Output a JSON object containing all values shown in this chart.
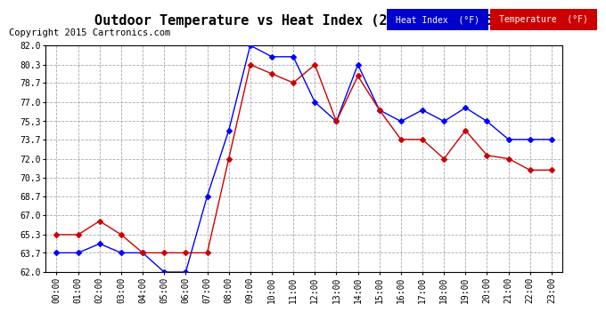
{
  "title": "Outdoor Temperature vs Heat Index (24 Hours) 20150529",
  "copyright": "Copyright 2015 Cartronics.com",
  "hours": [
    "00:00",
    "01:00",
    "02:00",
    "03:00",
    "04:00",
    "05:00",
    "06:00",
    "07:00",
    "08:00",
    "09:00",
    "10:00",
    "11:00",
    "12:00",
    "13:00",
    "14:00",
    "15:00",
    "16:00",
    "17:00",
    "18:00",
    "19:00",
    "20:00",
    "21:00",
    "22:00",
    "23:00"
  ],
  "heat_index": [
    63.7,
    63.7,
    64.5,
    63.7,
    63.7,
    62.0,
    62.0,
    68.7,
    74.5,
    82.0,
    81.0,
    81.0,
    77.0,
    75.3,
    80.3,
    76.3,
    75.3,
    76.3,
    75.3,
    76.5,
    75.3,
    73.7,
    73.7,
    73.7
  ],
  "temperature": [
    65.3,
    65.3,
    66.5,
    65.3,
    63.7,
    63.7,
    63.7,
    63.7,
    72.0,
    80.3,
    79.5,
    78.7,
    80.3,
    75.3,
    79.3,
    76.3,
    73.7,
    73.7,
    72.0,
    74.5,
    72.3,
    72.0,
    71.0,
    71.0
  ],
  "ylim": [
    62.0,
    82.0
  ],
  "yticks": [
    62.0,
    63.7,
    65.3,
    67.0,
    68.7,
    70.3,
    72.0,
    73.7,
    75.3,
    77.0,
    78.7,
    80.3,
    82.0
  ],
  "heat_index_color": "#0000ff",
  "temperature_color": "#cc0000",
  "bg_color": "#ffffff",
  "grid_color": "#aaaaaa",
  "legend_heat_bg": "#0000cc",
  "legend_temp_bg": "#cc0000",
  "title_fontsize": 11,
  "copyright_fontsize": 7.5
}
